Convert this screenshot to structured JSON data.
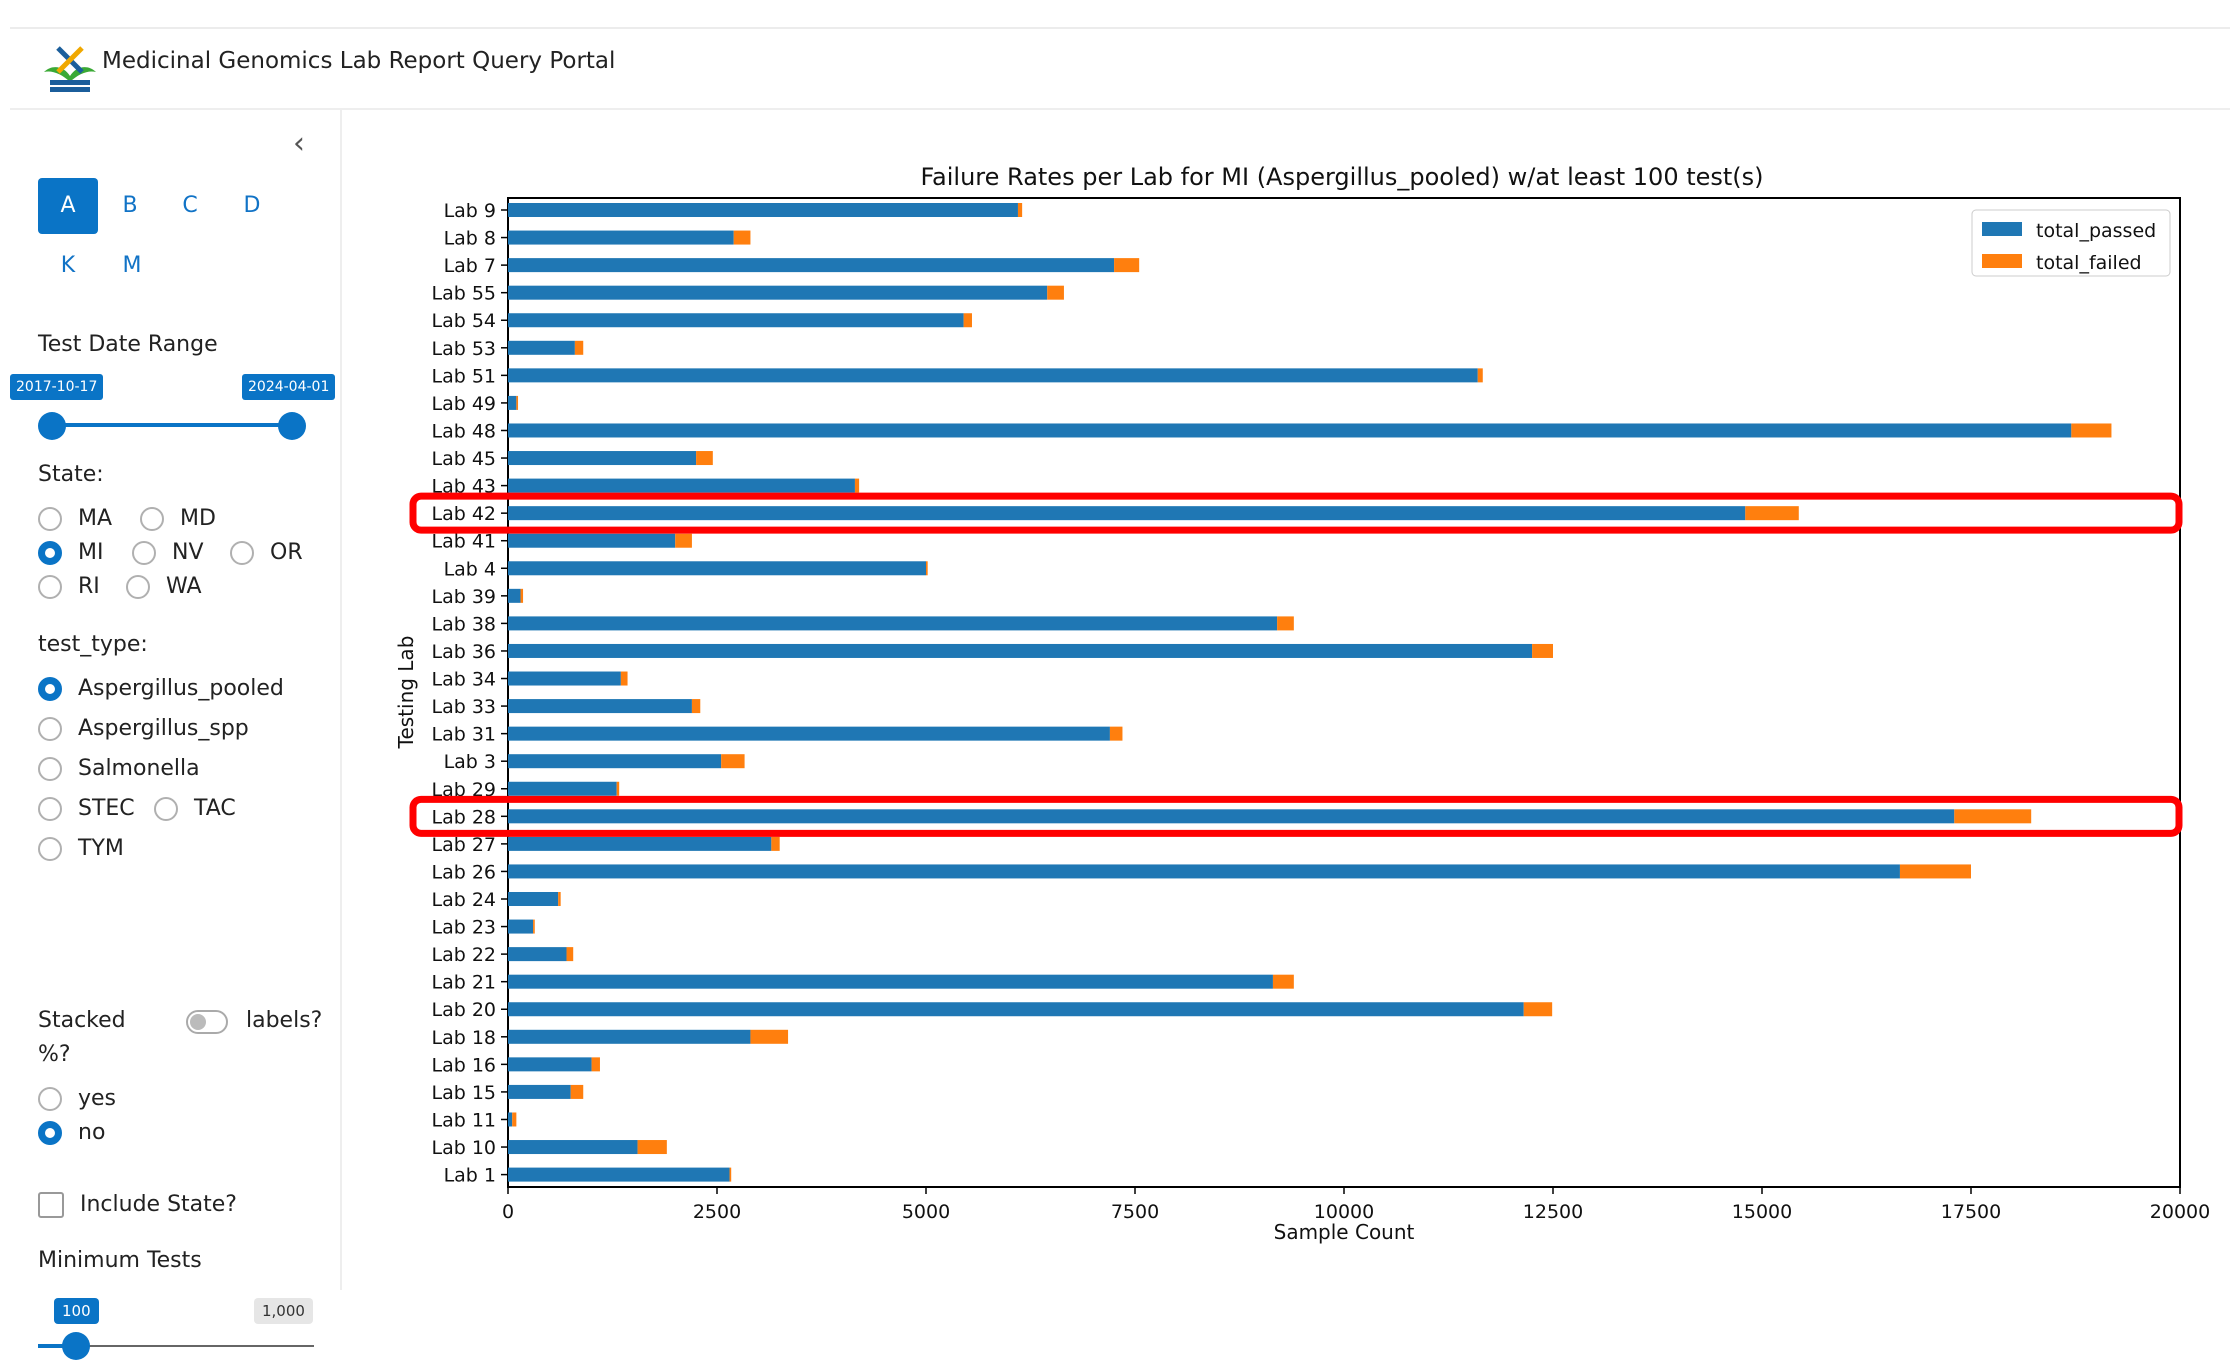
{
  "app": {
    "title": "Medicinal Genomics Lab Report Query Portal"
  },
  "sidebar": {
    "collapse_icon": "chevron-left-icon",
    "tabs": [
      {
        "label": "A",
        "active": true
      },
      {
        "label": "B",
        "active": false
      },
      {
        "label": "C",
        "active": false
      },
      {
        "label": "D",
        "active": false
      },
      {
        "label": "K",
        "active": false
      },
      {
        "label": "M",
        "active": false
      }
    ],
    "date_range": {
      "label": "Test Date Range",
      "start": "2017-10-17",
      "end": "2024-04-01"
    },
    "state": {
      "label": "State:",
      "options": [
        "MA",
        "MD",
        "MI",
        "NV",
        "OR",
        "RI",
        "WA"
      ],
      "selected": "MI"
    },
    "test_type": {
      "label": "test_type:",
      "options": [
        "Aspergillus_pooled",
        "Aspergillus_spp",
        "Salmonella",
        "STEC",
        "TAC",
        "TYM"
      ],
      "selected": "Aspergillus_pooled"
    },
    "stacked": {
      "label_line1": "Stacked",
      "label_line2": "%?",
      "toggle_label": "labels?",
      "options": [
        "yes",
        "no"
      ],
      "selected": "no"
    },
    "include_state": {
      "label": "Include State?",
      "checked": false
    },
    "min_tests": {
      "label": "Minimum Tests",
      "value": "100",
      "max": "1,000",
      "fraction": 0.0
    }
  },
  "chart_data": {
    "type": "bar",
    "orientation": "horizontal",
    "stacked": true,
    "title": "Failure Rates per Lab for MI (Aspergillus_pooled) w/at least 100 test(s)",
    "xlabel": "Sample Count",
    "ylabel": "Testing Lab",
    "xlim": [
      0,
      20000
    ],
    "xticks": [
      0,
      2500,
      5000,
      7500,
      10000,
      12500,
      15000,
      17500,
      20000
    ],
    "legend_position": "top-right",
    "colors": {
      "total_passed": "#1f77b4",
      "total_failed": "#ff7f0e",
      "highlight": "#ff0000"
    },
    "categories": [
      "Lab 9",
      "Lab 8",
      "Lab 7",
      "Lab 55",
      "Lab 54",
      "Lab 53",
      "Lab 51",
      "Lab 49",
      "Lab 48",
      "Lab 45",
      "Lab 43",
      "Lab 42",
      "Lab 41",
      "Lab 4",
      "Lab 39",
      "Lab 38",
      "Lab 36",
      "Lab 34",
      "Lab 33",
      "Lab 31",
      "Lab 3",
      "Lab 29",
      "Lab 28",
      "Lab 27",
      "Lab 26",
      "Lab 24",
      "Lab 23",
      "Lab 22",
      "Lab 21",
      "Lab 20",
      "Lab 18",
      "Lab 16",
      "Lab 15",
      "Lab 11",
      "Lab 10",
      "Lab 1"
    ],
    "series": [
      {
        "name": "total_passed",
        "values": [
          6100,
          2700,
          7250,
          6450,
          5450,
          800,
          11600,
          100,
          18700,
          2250,
          4150,
          14800,
          2000,
          5000,
          150,
          9200,
          12250,
          1350,
          2200,
          7200,
          2550,
          1300,
          17300,
          3150,
          16650,
          600,
          300,
          700,
          9150,
          12150,
          2900,
          1000,
          750,
          50,
          1550,
          2650
        ]
      },
      {
        "name": "total_failed",
        "values": [
          50,
          200,
          300,
          200,
          100,
          100,
          60,
          20,
          480,
          200,
          50,
          640,
          200,
          20,
          30,
          200,
          250,
          80,
          100,
          150,
          280,
          30,
          920,
          100,
          850,
          30,
          20,
          80,
          250,
          340,
          450,
          100,
          150,
          50,
          350,
          20
        ]
      }
    ],
    "highlighted": [
      "Lab 42",
      "Lab 28"
    ]
  }
}
